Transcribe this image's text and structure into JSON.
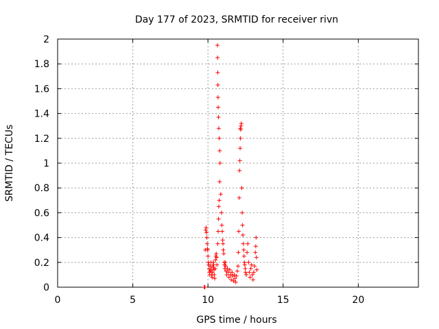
{
  "chart_data": {
    "type": "scatter",
    "title": "Day 177 of 2023, SRMTID for receiver rivn",
    "xlabel": "GPS time / hours",
    "ylabel": "SRMTID / TECUs",
    "xlim": [
      0,
      24
    ],
    "ylim": [
      0,
      2
    ],
    "xticks": [
      0,
      5,
      10,
      15,
      20
    ],
    "yticks": [
      0,
      0.2,
      0.4,
      0.6,
      0.8,
      1,
      1.2,
      1.4,
      1.6,
      1.8,
      2
    ],
    "xtick_labels": [
      "0",
      "5",
      "10",
      "15",
      "20"
    ],
    "ytick_labels": [
      "0",
      "0.2",
      "0.4",
      "0.6",
      "0.8",
      "1",
      "1.2",
      "1.4",
      "1.6",
      "1.8",
      "2"
    ],
    "grid": true,
    "marker_color": "#ff0000",
    "marker": "plus",
    "series": [
      {
        "name": "SRMTID",
        "points": [
          [
            9.75,
            0.0
          ],
          [
            9.78,
            0.0
          ],
          [
            9.8,
            0.0
          ],
          [
            9.82,
            0.3
          ],
          [
            9.85,
            0.46
          ],
          [
            9.88,
            0.48
          ],
          [
            9.9,
            0.44
          ],
          [
            9.92,
            0.4
          ],
          [
            9.95,
            0.35
          ],
          [
            9.97,
            0.31
          ],
          [
            9.98,
            0.3
          ],
          [
            10.0,
            0.25
          ],
          [
            10.02,
            0.2
          ],
          [
            10.05,
            0.18
          ],
          [
            10.08,
            0.15
          ],
          [
            10.1,
            0.12
          ],
          [
            10.12,
            0.1
          ],
          [
            10.15,
            0.13
          ],
          [
            10.18,
            0.17
          ],
          [
            10.2,
            0.2
          ],
          [
            10.22,
            0.14
          ],
          [
            10.25,
            0.1
          ],
          [
            10.28,
            0.08
          ],
          [
            10.3,
            0.12
          ],
          [
            10.33,
            0.16
          ],
          [
            10.35,
            0.2
          ],
          [
            10.38,
            0.18
          ],
          [
            10.4,
            0.14
          ],
          [
            10.42,
            0.1
          ],
          [
            10.45,
            0.07
          ],
          [
            10.48,
            0.15
          ],
          [
            10.5,
            0.22
          ],
          [
            10.52,
            0.25
          ],
          [
            10.55,
            0.27
          ],
          [
            10.58,
            0.24
          ],
          [
            10.6,
            0.18
          ],
          [
            10.65,
            0.35
          ],
          [
            10.68,
            0.45
          ],
          [
            10.7,
            0.55
          ],
          [
            10.72,
            0.65
          ],
          [
            10.75,
            0.7
          ],
          [
            10.78,
            0.85
          ],
          [
            10.8,
            1.0
          ],
          [
            10.78,
            1.1
          ],
          [
            10.75,
            1.2
          ],
          [
            10.72,
            1.28
          ],
          [
            10.7,
            1.37
          ],
          [
            10.68,
            1.45
          ],
          [
            10.67,
            1.53
          ],
          [
            10.66,
            1.63
          ],
          [
            10.65,
            1.73
          ],
          [
            10.64,
            1.85
          ],
          [
            10.63,
            1.95
          ],
          [
            10.85,
            0.75
          ],
          [
            10.9,
            0.6
          ],
          [
            10.92,
            0.5
          ],
          [
            10.95,
            0.45
          ],
          [
            10.98,
            0.38
          ],
          [
            11.0,
            0.35
          ],
          [
            11.02,
            0.3
          ],
          [
            11.05,
            0.27
          ],
          [
            11.08,
            0.2
          ],
          [
            11.1,
            0.18
          ],
          [
            11.12,
            0.15
          ],
          [
            11.15,
            0.2
          ],
          [
            11.18,
            0.17
          ],
          [
            11.2,
            0.13
          ],
          [
            11.25,
            0.1
          ],
          [
            11.3,
            0.15
          ],
          [
            11.35,
            0.12
          ],
          [
            11.4,
            0.08
          ],
          [
            11.45,
            0.14
          ],
          [
            11.5,
            0.1
          ],
          [
            11.55,
            0.06
          ],
          [
            11.6,
            0.12
          ],
          [
            11.65,
            0.09
          ],
          [
            11.7,
            0.05
          ],
          [
            11.75,
            0.1
          ],
          [
            11.8,
            0.07
          ],
          [
            11.85,
            0.04
          ],
          [
            11.9,
            0.09
          ],
          [
            11.95,
            0.13
          ],
          [
            12.0,
            0.17
          ],
          [
            12.02,
            0.28
          ],
          [
            12.05,
            0.45
          ],
          [
            12.08,
            0.72
          ],
          [
            12.1,
            0.94
          ],
          [
            12.12,
            1.02
          ],
          [
            12.14,
            1.12
          ],
          [
            12.16,
            1.2
          ],
          [
            12.18,
            1.27
          ],
          [
            12.2,
            1.3
          ],
          [
            12.22,
            1.32
          ],
          [
            12.15,
            1.28
          ],
          [
            12.25,
            0.8
          ],
          [
            12.28,
            0.6
          ],
          [
            12.3,
            0.5
          ],
          [
            12.32,
            0.42
          ],
          [
            12.35,
            0.35
          ],
          [
            12.38,
            0.3
          ],
          [
            12.4,
            0.25
          ],
          [
            12.42,
            0.2
          ],
          [
            12.45,
            0.18
          ],
          [
            12.48,
            0.15
          ],
          [
            12.5,
            0.12
          ],
          [
            12.55,
            0.1
          ],
          [
            12.6,
            0.28
          ],
          [
            12.65,
            0.35
          ],
          [
            12.7,
            0.2
          ],
          [
            12.75,
            0.12
          ],
          [
            12.8,
            0.08
          ],
          [
            12.85,
            0.15
          ],
          [
            12.9,
            0.18
          ],
          [
            12.95,
            0.1
          ],
          [
            13.0,
            0.06
          ],
          [
            13.05,
            0.12
          ],
          [
            13.1,
            0.17
          ],
          [
            13.15,
            0.28
          ],
          [
            13.18,
            0.33
          ],
          [
            13.2,
            0.4
          ],
          [
            13.22,
            0.24
          ],
          [
            13.25,
            0.14
          ]
        ]
      }
    ]
  }
}
